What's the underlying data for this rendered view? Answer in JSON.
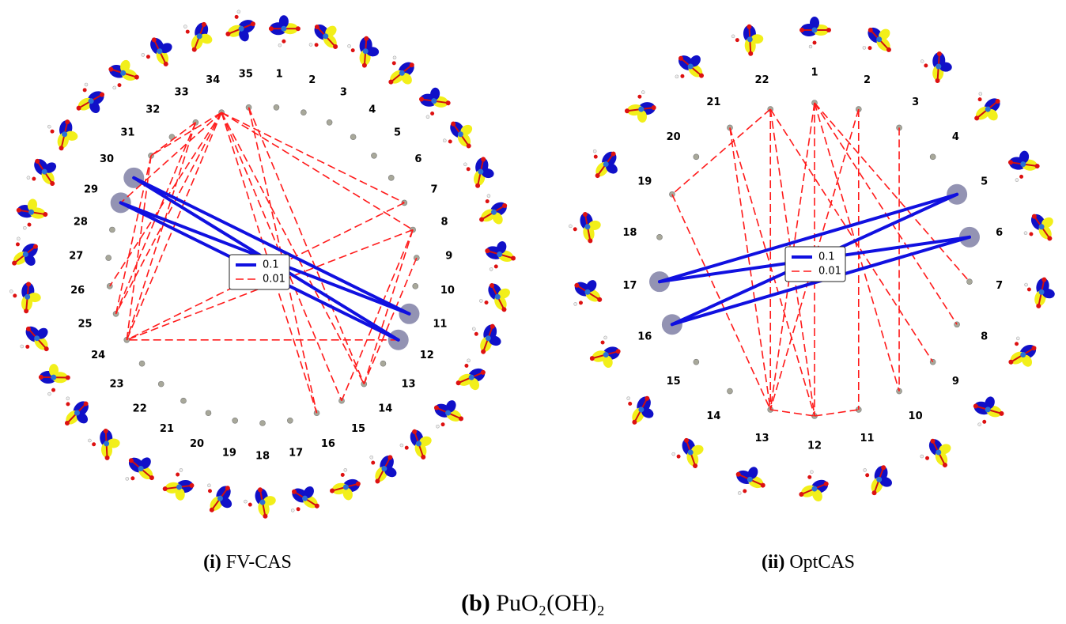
{
  "panels": [
    {
      "caption_label": "(i)",
      "caption_text": "FV-CAS",
      "nodes": [
        "1",
        "2",
        "3",
        "4",
        "5",
        "6",
        "7",
        "8",
        "9",
        "10",
        "11",
        "12",
        "13",
        "14",
        "15",
        "16",
        "17",
        "18",
        "19",
        "20",
        "21",
        "22",
        "23",
        "24",
        "25",
        "26",
        "27",
        "28",
        "29",
        "30",
        "31",
        "32",
        "33",
        "34",
        "35"
      ],
      "emphasized_nodes": [
        28,
        29,
        10,
        11
      ],
      "strong_edges": [
        [
          28,
          10
        ],
        [
          28,
          11
        ],
        [
          29,
          10
        ],
        [
          29,
          11
        ]
      ],
      "weak_edges": [
        [
          33,
          24
        ],
        [
          33,
          23
        ],
        [
          33,
          25
        ],
        [
          33,
          28
        ],
        [
          33,
          30
        ],
        [
          33,
          6
        ],
        [
          33,
          7
        ],
        [
          33,
          13
        ],
        [
          33,
          14
        ],
        [
          33,
          15
        ],
        [
          32,
          24
        ],
        [
          32,
          23
        ],
        [
          32,
          30
        ],
        [
          7,
          23
        ],
        [
          7,
          14
        ],
        [
          8,
          13
        ],
        [
          7,
          13
        ],
        [
          30,
          24
        ],
        [
          30,
          23
        ],
        [
          34,
          13
        ],
        [
          34,
          15
        ],
        [
          6,
          23
        ],
        [
          11,
          23
        ]
      ],
      "legend": [
        "0.1",
        "0.01"
      ]
    },
    {
      "caption_label": "(ii)",
      "caption_text": "OptCAS",
      "nodes": [
        "1",
        "2",
        "3",
        "4",
        "5",
        "6",
        "7",
        "8",
        "9",
        "10",
        "11",
        "12",
        "13",
        "14",
        "15",
        "16",
        "17",
        "18",
        "19",
        "20",
        "21",
        "22"
      ],
      "emphasized_nodes": [
        4,
        5,
        15,
        16
      ],
      "strong_edges": [
        [
          4,
          16
        ],
        [
          4,
          15
        ],
        [
          5,
          16
        ],
        [
          5,
          15
        ]
      ],
      "weak_edges": [
        [
          21,
          18
        ],
        [
          21,
          12
        ],
        [
          21,
          11
        ],
        [
          0,
          11
        ],
        [
          0,
          12
        ],
        [
          0,
          9
        ],
        [
          0,
          7
        ],
        [
          0,
          6
        ],
        [
          1,
          10
        ],
        [
          1,
          12
        ],
        [
          20,
          12
        ],
        [
          20,
          11
        ],
        [
          2,
          9
        ],
        [
          12,
          11
        ],
        [
          11,
          10
        ],
        [
          21,
          8
        ],
        [
          18,
          12
        ]
      ],
      "legend": [
        "0.1",
        "0.01"
      ]
    }
  ],
  "caption_label": "(b)",
  "caption_text": "PuO₂(OH)₂"
}
